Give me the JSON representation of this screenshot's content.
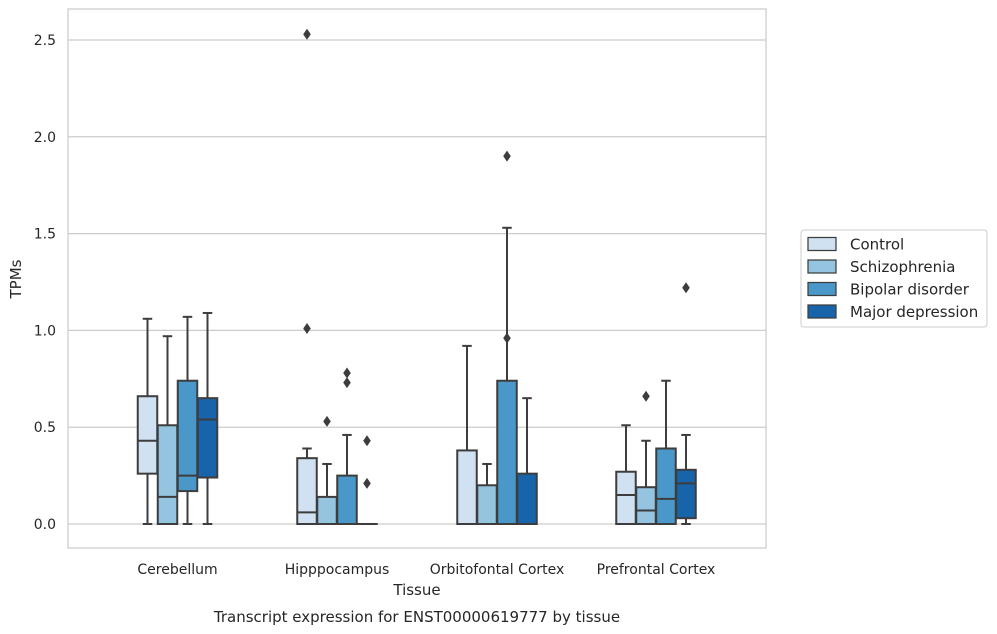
{
  "chart_data": {
    "type": "box",
    "xlabel": "Tissue",
    "ylabel": "TPMs",
    "caption": "Transcript expression for ENST00000619777 by tissue",
    "ylim": [
      -0.12,
      2.66
    ],
    "yticks": [
      0.0,
      0.5,
      1.0,
      1.5,
      2.0,
      2.5
    ],
    "ytick_labels": [
      "0.0",
      "0.5",
      "1.0",
      "1.5",
      "2.0",
      "2.5"
    ],
    "grid": "horizontal",
    "legend_position": "center-right outside",
    "categories": [
      "Cerebellum",
      "Hipppocampus",
      "Orbitofontal Cortex",
      "Prefrontal Cortex"
    ],
    "series": [
      {
        "name": "Control",
        "color": "#d0e1f2",
        "boxes": [
          {
            "whislo": 0.0,
            "q1": 0.26,
            "med": 0.43,
            "q3": 0.66,
            "whishi": 1.06,
            "fliers": []
          },
          {
            "whislo": 0.0,
            "q1": 0.0,
            "med": 0.06,
            "q3": 0.34,
            "whishi": 0.39,
            "fliers": [
              1.01,
              2.53
            ]
          },
          {
            "whislo": 0.0,
            "q1": 0.0,
            "med": 0.0,
            "q3": 0.38,
            "whishi": 0.92,
            "fliers": []
          },
          {
            "whislo": 0.0,
            "q1": 0.0,
            "med": 0.15,
            "q3": 0.27,
            "whishi": 0.51,
            "fliers": []
          }
        ]
      },
      {
        "name": "Schizophrenia",
        "color": "#94c4df",
        "boxes": [
          {
            "whislo": 0.0,
            "q1": 0.0,
            "med": 0.14,
            "q3": 0.51,
            "whishi": 0.97,
            "fliers": []
          },
          {
            "whislo": 0.0,
            "q1": 0.0,
            "med": 0.0,
            "q3": 0.14,
            "whishi": 0.31,
            "fliers": [
              0.53
            ]
          },
          {
            "whislo": 0.0,
            "q1": 0.0,
            "med": 0.0,
            "q3": 0.2,
            "whishi": 0.31,
            "fliers": []
          },
          {
            "whislo": 0.0,
            "q1": 0.0,
            "med": 0.07,
            "q3": 0.19,
            "whishi": 0.43,
            "fliers": [
              0.66
            ]
          }
        ]
      },
      {
        "name": "Bipolar disorder",
        "color": "#4a98c9",
        "boxes": [
          {
            "whislo": 0.0,
            "q1": 0.17,
            "med": 0.25,
            "q3": 0.74,
            "whishi": 1.07,
            "fliers": []
          },
          {
            "whislo": 0.0,
            "q1": 0.0,
            "med": 0.0,
            "q3": 0.25,
            "whishi": 0.46,
            "fliers": [
              0.73,
              0.78
            ]
          },
          {
            "whislo": 0.0,
            "q1": 0.0,
            "med": 0.0,
            "q3": 0.74,
            "whishi": 1.53,
            "fliers": [
              0.96,
              1.9
            ]
          },
          {
            "whislo": 0.0,
            "q1": 0.0,
            "med": 0.13,
            "q3": 0.39,
            "whishi": 0.74,
            "fliers": []
          }
        ]
      },
      {
        "name": "Major depression",
        "color": "#1764ab",
        "boxes": [
          {
            "whislo": 0.0,
            "q1": 0.24,
            "med": 0.54,
            "q3": 0.65,
            "whishi": 1.09,
            "fliers": []
          },
          {
            "whislo": 0.0,
            "q1": 0.0,
            "med": 0.0,
            "q3": 0.0,
            "whishi": 0.0,
            "fliers": [
              0.21,
              0.43
            ]
          },
          {
            "whislo": 0.0,
            "q1": 0.0,
            "med": 0.0,
            "q3": 0.26,
            "whishi": 0.65,
            "fliers": []
          },
          {
            "whislo": 0.0,
            "q1": 0.03,
            "med": 0.21,
            "q3": 0.28,
            "whishi": 0.46,
            "fliers": [
              1.22
            ]
          }
        ]
      }
    ]
  }
}
